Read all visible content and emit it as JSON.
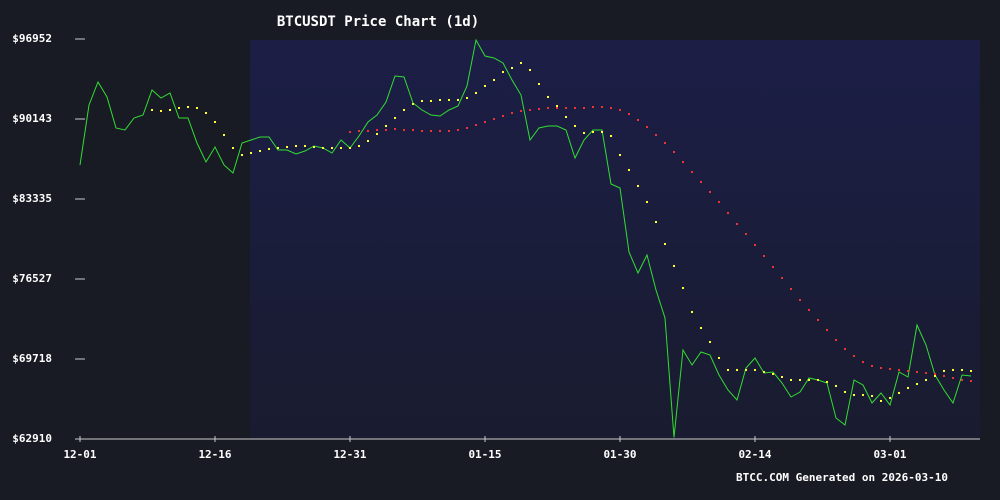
{
  "chart_data": {
    "type": "line",
    "title": "BTCUSDT Price Chart (1d)",
    "footer": "BTCC.COM Generated on 2026-03-10",
    "x": [
      "12-01",
      "12-02",
      "12-03",
      "12-04",
      "12-05",
      "12-06",
      "12-07",
      "12-08",
      "12-09",
      "12-10",
      "12-11",
      "12-12",
      "12-13",
      "12-14",
      "12-15",
      "12-16",
      "12-17",
      "12-18",
      "12-19",
      "12-20",
      "12-21",
      "12-22",
      "12-23",
      "12-24",
      "12-25",
      "12-26",
      "12-27",
      "12-28",
      "12-29",
      "12-30",
      "12-31",
      "01-01",
      "01-02",
      "01-03",
      "01-04",
      "01-05",
      "01-06",
      "01-07",
      "01-08",
      "01-09",
      "01-10",
      "01-11",
      "01-12",
      "01-13",
      "01-14",
      "01-15",
      "01-16",
      "01-17",
      "01-18",
      "01-19",
      "01-20",
      "01-21",
      "01-22",
      "01-23",
      "01-24",
      "01-25",
      "01-26",
      "01-27",
      "01-28",
      "01-29",
      "01-30",
      "01-31",
      "02-01",
      "02-02",
      "02-03",
      "02-04",
      "02-05",
      "02-06",
      "02-07",
      "02-08",
      "02-09",
      "02-10",
      "02-11",
      "02-12",
      "02-13",
      "02-14",
      "02-15",
      "02-16",
      "02-17",
      "02-18",
      "02-19",
      "02-20",
      "02-21",
      "02-22",
      "02-23",
      "02-24",
      "02-25",
      "02-26",
      "02-27",
      "02-28",
      "03-01",
      "03-02",
      "03-03",
      "03-04",
      "03-05",
      "03-06",
      "03-07",
      "03-08",
      "03-09",
      "03-10"
    ],
    "series": [
      {
        "color": "#33dd33",
        "style": "line",
        "values": [
          86229,
          91335,
          93293,
          92016,
          89378,
          89208,
          90229,
          90484,
          92612,
          91931,
          92357,
          90229,
          90229,
          88102,
          86485,
          87761,
          86229,
          85549,
          88102,
          88357,
          88612,
          88612,
          87506,
          87506,
          87165,
          87421,
          87846,
          87676,
          87251,
          88357,
          87676,
          88697,
          89889,
          90484,
          91591,
          93803,
          93718,
          91506,
          90910,
          90484,
          90399,
          90910,
          91250,
          92952,
          96867,
          95505,
          95335,
          94910,
          93463,
          92186,
          88357,
          89378,
          89548,
          89548,
          89208,
          86825,
          88357,
          89208,
          89208,
          84612,
          84272,
          78826,
          77039,
          78570,
          75592,
          73209,
          63050,
          70486,
          69209,
          70316,
          70060,
          68358,
          67082,
          66231,
          68954,
          69805,
          68529,
          68614,
          67678,
          66486,
          66912,
          68103,
          67933,
          67678,
          64699,
          64103,
          67933,
          67507,
          65976,
          66827,
          65805,
          68614,
          68188,
          72613,
          70911,
          68358,
          67082,
          65976,
          68358,
          68273
        ]
      },
      {
        "color": "#ffff33",
        "style": "dots",
        "values": [
          null,
          null,
          null,
          null,
          null,
          null,
          null,
          null,
          90910,
          90825,
          90910,
          91080,
          91165,
          91080,
          90655,
          89889,
          88782,
          87676,
          87080,
          87251,
          87421,
          87591,
          87676,
          87761,
          87846,
          87846,
          87761,
          87676,
          87676,
          87676,
          87676,
          87846,
          88272,
          88867,
          89548,
          90229,
          90910,
          91420,
          91676,
          91676,
          91761,
          91761,
          91761,
          91931,
          92357,
          92952,
          93463,
          94144,
          94484,
          94910,
          94314,
          93122,
          92016,
          91250,
          90314,
          89548,
          88952,
          89038,
          89038,
          88697,
          87080,
          85804,
          84442,
          83081,
          81379,
          79506,
          77634,
          75762,
          73720,
          72358,
          71167,
          69805,
          68784,
          68784,
          68784,
          68784,
          68614,
          68443,
          68188,
          67933,
          67933,
          67933,
          67933,
          67763,
          67422,
          66912,
          66656,
          66656,
          66571,
          66146,
          66401,
          66827,
          67252,
          67592,
          67933,
          68273,
          68699,
          68784,
          68784,
          68699
        ]
      },
      {
        "color": "#ee3333",
        "style": "dots",
        "values": [
          null,
          null,
          null,
          null,
          null,
          null,
          null,
          null,
          null,
          null,
          null,
          null,
          null,
          null,
          null,
          null,
          null,
          null,
          null,
          null,
          null,
          null,
          null,
          null,
          null,
          null,
          null,
          null,
          null,
          null,
          89038,
          89123,
          89123,
          89208,
          89208,
          89293,
          89208,
          89208,
          89123,
          89123,
          89123,
          89123,
          89208,
          89378,
          89633,
          89889,
          90144,
          90399,
          90655,
          90825,
          90910,
          90995,
          91080,
          91080,
          91080,
          91080,
          91080,
          91165,
          91165,
          91080,
          90910,
          90569,
          90059,
          89463,
          88782,
          88102,
          87336,
          86485,
          85634,
          84783,
          83932,
          83081,
          82145,
          81208,
          80357,
          79421,
          78485,
          77549,
          76613,
          75677,
          74741,
          73890,
          73039,
          72188,
          71337,
          70571,
          69975,
          69465,
          69124,
          68954,
          68869,
          68784,
          68699,
          68614,
          68529,
          68443,
          68273,
          68103,
          67933,
          67848
        ]
      }
    ],
    "ylim": [
      62910,
      96952
    ],
    "yticks": [
      {
        "value": 62910,
        "label": "$62910"
      },
      {
        "value": 69718,
        "label": "$69718"
      },
      {
        "value": 76527,
        "label": "$76527"
      },
      {
        "value": 83335,
        "label": "$83335"
      },
      {
        "value": 90143,
        "label": "$90143"
      },
      {
        "value": 96952,
        "label": "$96952"
      }
    ],
    "xticks": [
      "12-01",
      "12-16",
      "12-31",
      "01-15",
      "01-30",
      "02-14",
      "03-01"
    ],
    "background": "#181a24"
  }
}
